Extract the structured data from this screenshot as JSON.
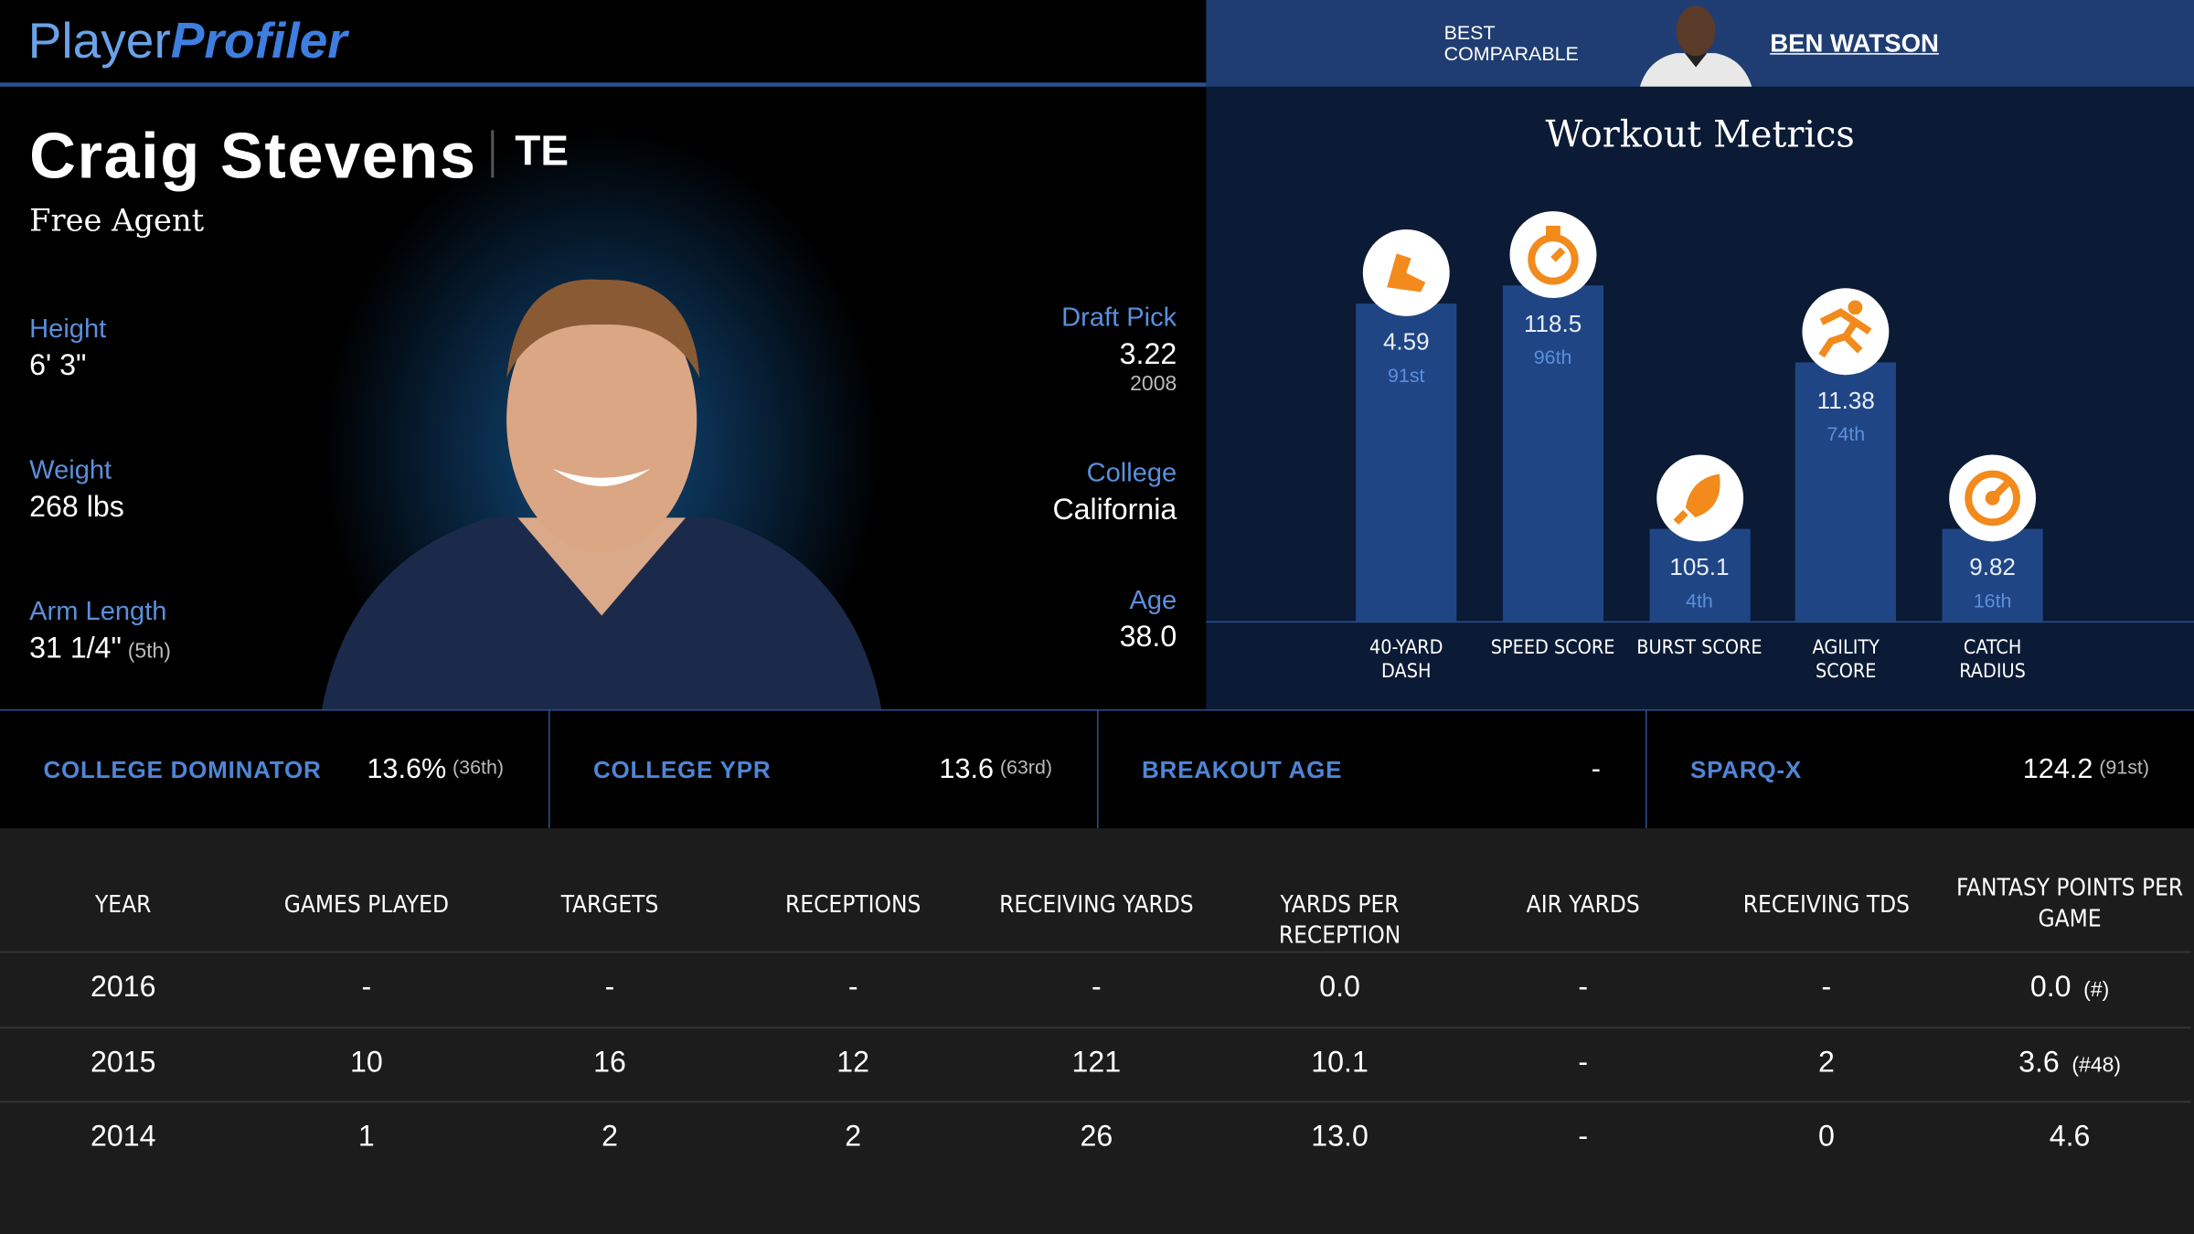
{
  "header": {
    "logo_part1": "Player",
    "logo_part2": "Profiler",
    "comparable_label_line1": "BEST",
    "comparable_label_line2": "COMPARABLE",
    "comparable_name": "BEN WATSON"
  },
  "player": {
    "name": "Craig Stevens",
    "position": "TE",
    "status": "Free Agent",
    "height_label": "Height",
    "height": "6' 3\"",
    "weight_label": "Weight",
    "weight": "268 lbs",
    "arm_label": "Arm Length",
    "arm": "31 1/4\"",
    "arm_rank": "(5th)",
    "draft_label": "Draft Pick",
    "draft_pick": "3.22",
    "draft_year": "2008",
    "college_label": "College",
    "college": "California",
    "age_label": "Age",
    "age": "38.0"
  },
  "workout": {
    "title": "Workout Metrics",
    "metrics": [
      {
        "name": "40-YARD DASH",
        "value": 4.59,
        "percentile": 91,
        "percentile_label": "91st"
      },
      {
        "name": "SPEED SCORE",
        "value": 118.5,
        "percentile": 96,
        "percentile_label": "96th"
      },
      {
        "name": "BURST SCORE",
        "value": 105.1,
        "percentile": 4,
        "percentile_label": "4th"
      },
      {
        "name": "AGILITY SCORE",
        "value": 11.38,
        "percentile": 74,
        "percentile_label": "74th"
      },
      {
        "name": "CATCH RADIUS",
        "value": 9.82,
        "percentile": 16,
        "percentile_label": "16th"
      }
    ]
  },
  "college_stats": [
    {
      "label": "COLLEGE DOMINATOR",
      "value": "13.6%",
      "rank": "(36th)"
    },
    {
      "label": "COLLEGE YPR",
      "value": "13.6",
      "rank": "(63rd)"
    },
    {
      "label": "BREAKOUT AGE",
      "value": "-"
    },
    {
      "label": "SPARQ-X",
      "value": "124.2",
      "rank": "(91st)"
    }
  ],
  "table": {
    "columns": [
      "YEAR",
      "GAMES PLAYED",
      "TARGETS",
      "RECEPTIONS",
      "RECEIVING YARDS",
      "YARDS PER RECEPTION",
      "AIR YARDS",
      "RECEIVING TDS",
      "FANTASY POINTS PER GAME"
    ],
    "rows": [
      {
        "cells": [
          "2016",
          "-",
          "-",
          "-",
          "-",
          "0.0",
          "-",
          "-",
          "0.0"
        ],
        "rank": "(#)"
      },
      {
        "cells": [
          "2015",
          "10",
          "16",
          "12",
          "121",
          "10.1",
          "-",
          "2",
          "3.6"
        ],
        "rank": "(#48)"
      },
      {
        "cells": [
          "2014",
          "1",
          "2",
          "2",
          "26",
          "13.0",
          "-",
          "0",
          "4.6"
        ]
      }
    ]
  }
}
